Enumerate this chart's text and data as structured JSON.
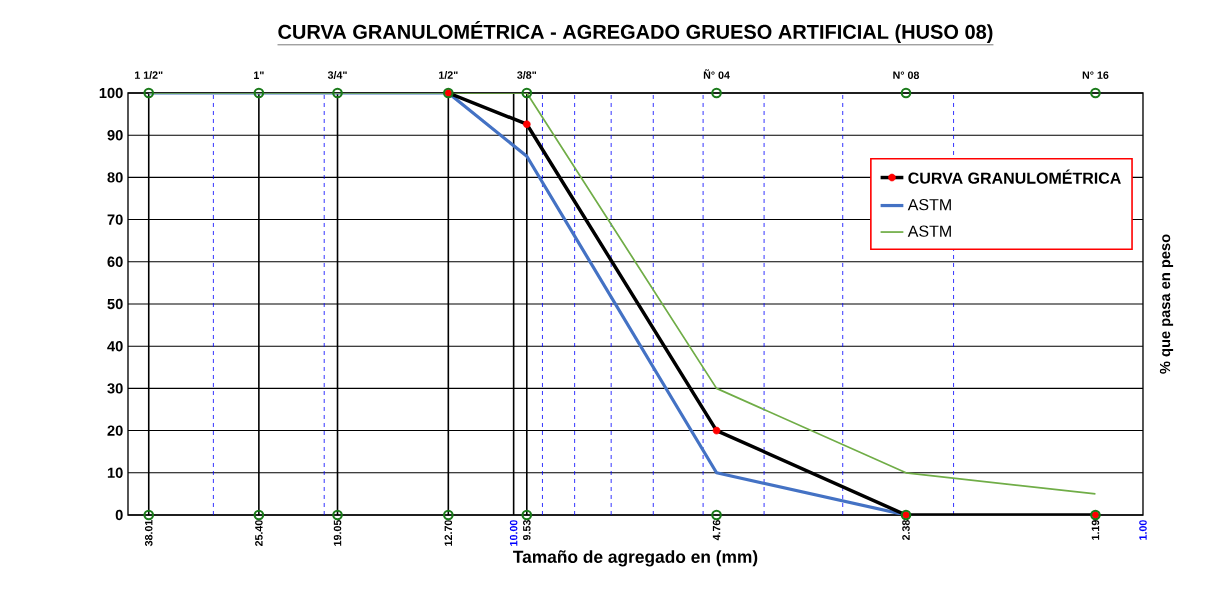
{
  "chart_data": {
    "type": "line",
    "title": "CURVA GRANULOMÉTRICA - AGREGADO GRUESO ARTIFICIAL (HUSO 08)",
    "xlabel": "Tamaño de agregado en (mm)",
    "ylabel": "% que pasa en peso",
    "log": "x",
    "legend": "top right",
    "xlim": [
      41,
      1
    ],
    "xticks": [
      {
        "value": 38.01,
        "label": "38.01"
      },
      {
        "value": 25.4,
        "label": "25.40"
      },
      {
        "value": 19.05,
        "label": "19.05"
      },
      {
        "value": 12.7,
        "label": "12.70"
      },
      {
        "value": 10,
        "label": "10.00"
      },
      {
        "value": 9.53,
        "label": "9.53"
      },
      {
        "value": 4.76,
        "label": "4.76"
      },
      {
        "value": 2.38,
        "label": "2.38"
      },
      {
        "value": 1.19,
        "label": "1.19"
      },
      {
        "value": 1,
        "label": "1.00"
      }
    ],
    "annotations": [
      {
        "text": "1 1/2\"",
        "x": 38.01,
        "y": 100
      },
      {
        "text": "1\"",
        "x": 25.4,
        "y": 100
      },
      {
        "text": "3/4\"",
        "x": 19.05,
        "y": 100
      },
      {
        "text": "1/2\"",
        "x": 12.7,
        "y": 100
      },
      {
        "text": "3/8\"",
        "x": 9.53,
        "y": 100
      },
      {
        "text": "Ñ° 04",
        "x": 4.76,
        "y": 100
      },
      {
        "text": "N° 08",
        "x": 2.38,
        "y": 100
      },
      {
        "text": "N° 16",
        "x": 1.19,
        "y": 100
      }
    ],
    "grid": "y",
    "ylim": [
      0,
      100
    ],
    "yticks": [
      0,
      10,
      20,
      30,
      40,
      50,
      60,
      70,
      80,
      90,
      100
    ],
    "x": [
      38.01,
      25.4,
      19.05,
      12.7,
      9.53,
      4.76,
      2.38,
      1.19
    ],
    "series": [
      {
        "name": "CURVA GRANULOMÉTRICA",
        "color": "#000000",
        "marker": "circle",
        "values": [
          null,
          null,
          null,
          100,
          92.6,
          20,
          0,
          0
        ]
      },
      {
        "name": "ASTM",
        "color": "#4472c4",
        "values": [
          100,
          100,
          100,
          100,
          85,
          10,
          0,
          null
        ]
      },
      {
        "name": "ASTM",
        "color": "#70ad47",
        "values": [
          100,
          100,
          100,
          100,
          100,
          30,
          10,
          5
        ]
      },
      {
        "type": "scatter",
        "color": "#1a7a1a",
        "marker": "circle",
        "values": [
          100,
          100,
          100,
          100,
          100,
          100,
          100,
          100
        ]
      },
      {
        "type": "scatter",
        "color": "#1a7a1a",
        "marker": "circle",
        "values": [
          0,
          0,
          0,
          0,
          0,
          0,
          0,
          0
        ]
      }
    ],
    "ref_lines": [
      {
        "axis": "x",
        "value": 38.01,
        "color": "#000000"
      },
      {
        "axis": "x",
        "value": 25.4,
        "color": "#000000"
      },
      {
        "axis": "x",
        "value": 19.05,
        "color": "#000000"
      },
      {
        "axis": "x",
        "value": 12.7,
        "color": "#000000"
      },
      {
        "axis": "x",
        "value": 9.53,
        "color": "#000000"
      },
      {
        "axis": "x",
        "value": 10,
        "color": "#000000"
      },
      {
        "axis": "x",
        "value": 30,
        "color": "#0000ff",
        "line_style": "dashed"
      },
      {
        "axis": "x",
        "value": 20,
        "color": "#0000ff",
        "line_style": "dashed"
      },
      {
        "axis": "x",
        "value": 9,
        "color": "#0000ff",
        "line_style": "dashed"
      },
      {
        "axis": "x",
        "value": 8,
        "color": "#0000ff",
        "line_style": "dashed"
      },
      {
        "axis": "x",
        "value": 7,
        "color": "#0000ff",
        "line_style": "dashed"
      },
      {
        "axis": "x",
        "value": 6,
        "color": "#0000ff",
        "line_style": "dashed"
      },
      {
        "axis": "x",
        "value": 5,
        "color": "#0000ff",
        "line_style": "dashed"
      },
      {
        "axis": "x",
        "value": 4,
        "color": "#0000ff",
        "line_style": "dashed"
      },
      {
        "axis": "x",
        "value": 3,
        "color": "#0000ff",
        "line_style": "dashed"
      },
      {
        "axis": "x",
        "value": 2,
        "color": "#0000ff",
        "line_style": "dashed"
      }
    ]
  }
}
